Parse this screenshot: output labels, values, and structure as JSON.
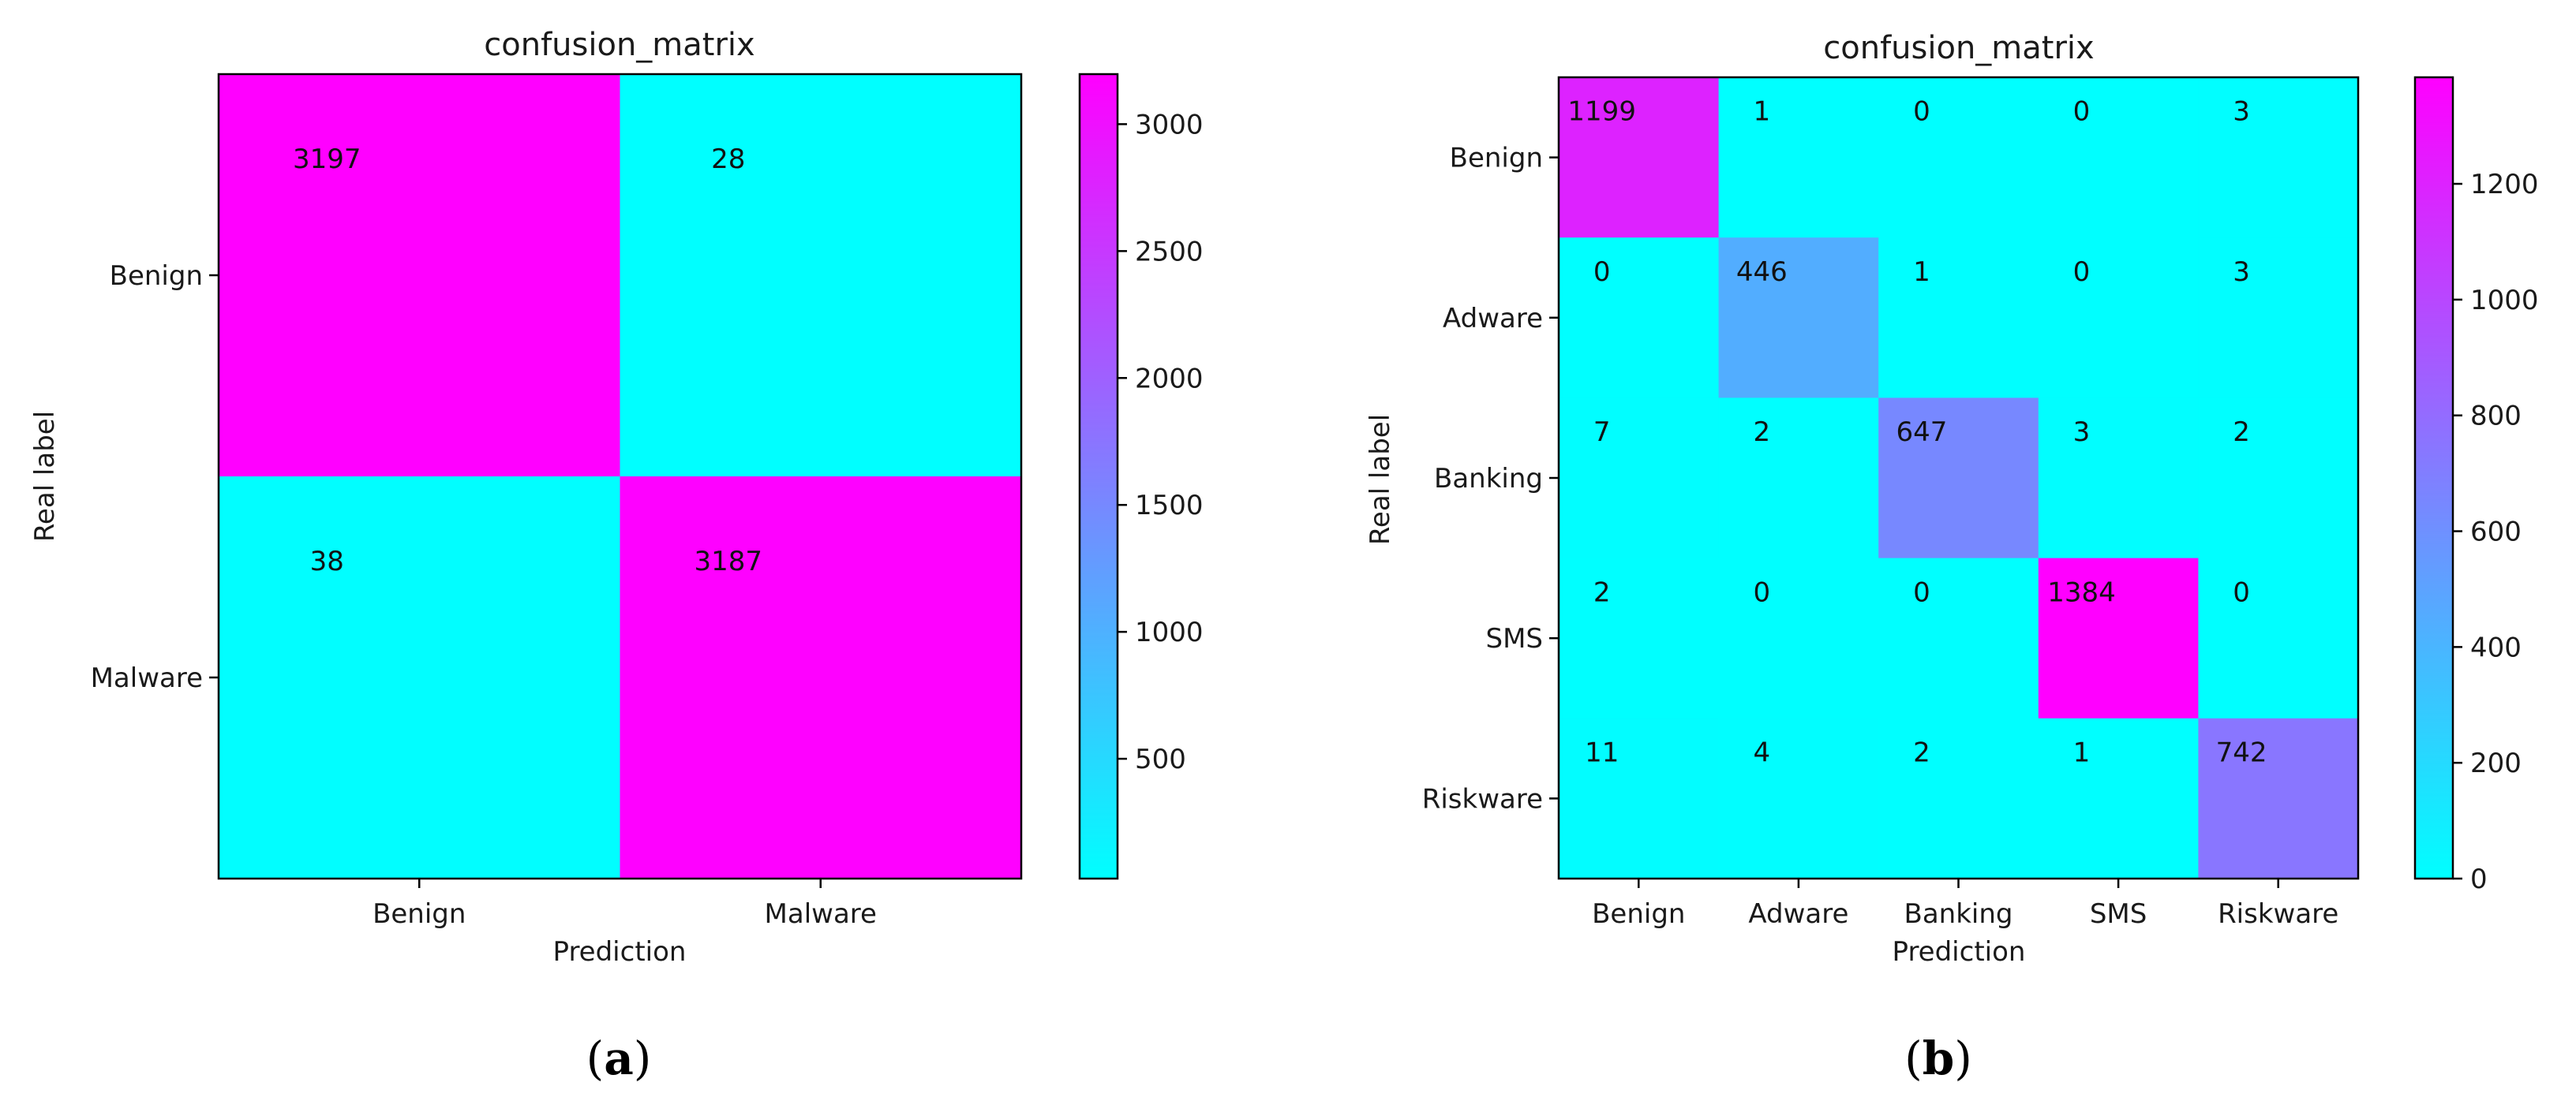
{
  "colors": {
    "colormap_low": "#00ffff",
    "colormap_high": "#ff00ff",
    "frame": "#000000",
    "text": "#1a1a1a"
  },
  "chart_data": [
    {
      "type": "heatmap",
      "caption": "a",
      "title": "confusion_matrix",
      "xlabel": "Prediction",
      "ylabel": "Real label",
      "x_categories": [
        "Benign",
        "Malware"
      ],
      "y_categories": [
        "Benign",
        "Malware"
      ],
      "matrix": [
        [
          3197,
          28
        ],
        [
          38,
          3187
        ]
      ],
      "colorbar": {
        "vmin": 28,
        "vmax": 3197,
        "ticks": [
          "500",
          "1000",
          "1500",
          "2000",
          "2500",
          "3000"
        ],
        "tick_values": [
          500,
          1000,
          1500,
          2000,
          2500,
          3000
        ]
      },
      "colormap": "cool"
    },
    {
      "type": "heatmap",
      "caption": "b",
      "title": "confusion_matrix",
      "xlabel": "Prediction",
      "ylabel": "Real label",
      "x_categories": [
        "Benign",
        "Adware",
        "Banking",
        "SMS",
        "Riskware"
      ],
      "y_categories": [
        "Benign",
        "Adware",
        "Banking",
        "SMS",
        "Riskware"
      ],
      "matrix": [
        [
          1199,
          1,
          0,
          0,
          3
        ],
        [
          0,
          446,
          1,
          0,
          3
        ],
        [
          7,
          2,
          647,
          3,
          2
        ],
        [
          2,
          0,
          0,
          1384,
          0
        ],
        [
          11,
          4,
          2,
          1,
          742
        ]
      ],
      "colorbar": {
        "vmin": 0,
        "vmax": 1384,
        "ticks": [
          "0",
          "200",
          "400",
          "600",
          "800",
          "1000",
          "1200"
        ],
        "tick_values": [
          0,
          200,
          400,
          600,
          800,
          1000,
          1200
        ]
      },
      "colormap": "cool"
    }
  ]
}
